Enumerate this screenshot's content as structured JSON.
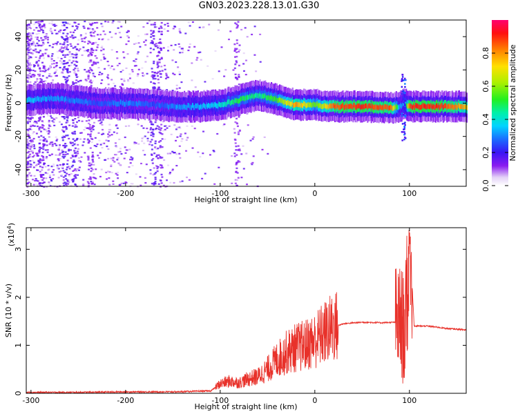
{
  "title": "GN03.2023.228.13.01.G30",
  "chart_data": [
    {
      "type": "heatmap",
      "xlabel": "Height of straight line (km)",
      "ylabel": "Frequency (Hz)",
      "xlim": [
        -305,
        160
      ],
      "ylim": [
        -50,
        50
      ],
      "x_ticks": [
        -300,
        -200,
        -100,
        0,
        100
      ],
      "y_ticks": [
        -40,
        -20,
        0,
        20,
        40
      ],
      "colorbar": {
        "label": "Normalized spectral amplitude",
        "range": [
          0.0,
          1.0
        ],
        "ticks": [
          "0.0",
          "0.2",
          "0.4",
          "0.6",
          "0.8"
        ]
      },
      "ridge": {
        "description": "dominant frequency track vs height",
        "x": [
          -300,
          -275,
          -250,
          -230,
          -200,
          -170,
          -150,
          -120,
          -100,
          -80,
          -60,
          -40,
          -20,
          0,
          20,
          50,
          80,
          90,
          95,
          100,
          130,
          160
        ],
        "y": [
          2,
          3,
          1,
          0,
          0,
          -1,
          -2,
          -2,
          -1,
          2,
          5,
          2,
          -1,
          -1,
          -2,
          -2,
          -3,
          -2,
          0,
          -2,
          -2,
          -2
        ],
        "amplitude": [
          0.35,
          0.3,
          0.3,
          0.25,
          0.3,
          0.25,
          0.3,
          0.35,
          0.4,
          0.5,
          0.45,
          0.55,
          0.8,
          0.55,
          0.85,
          0.9,
          0.85,
          0.3,
          0.35,
          0.9,
          0.9,
          0.75
        ]
      }
    },
    {
      "type": "line",
      "xlabel": "Height of straight line (km)",
      "ylabel": "SNR (10 * v/v)",
      "y_multiplier": "(x10",
      "y_multiplier_exp": "4",
      "xlim": [
        -305,
        160
      ],
      "ylim": [
        0,
        3.45
      ],
      "x_ticks": [
        -300,
        -200,
        -100,
        0,
        100
      ],
      "y_ticks": [
        0,
        1,
        2,
        3
      ],
      "color": "#e8312a",
      "series": [
        {
          "x": [
            -305,
            -250,
            -200,
            -150,
            -110,
            -100,
            -90,
            -80,
            -70,
            -60,
            -50,
            -40,
            -30,
            -20,
            -10,
            0,
            10,
            20,
            30,
            50,
            70,
            85,
            90,
            95,
            98,
            100,
            105,
            120,
            140,
            160
          ],
          "y": [
            0.02,
            0.02,
            0.03,
            0.03,
            0.05,
            0.2,
            0.25,
            0.22,
            0.3,
            0.35,
            0.5,
            0.7,
            0.85,
            0.95,
            1.0,
            1.1,
            1.25,
            1.38,
            1.45,
            1.48,
            1.47,
            1.48,
            1.5,
            1.3,
            2.0,
            3.4,
            1.4,
            1.4,
            1.35,
            1.32
          ]
        }
      ]
    }
  ]
}
